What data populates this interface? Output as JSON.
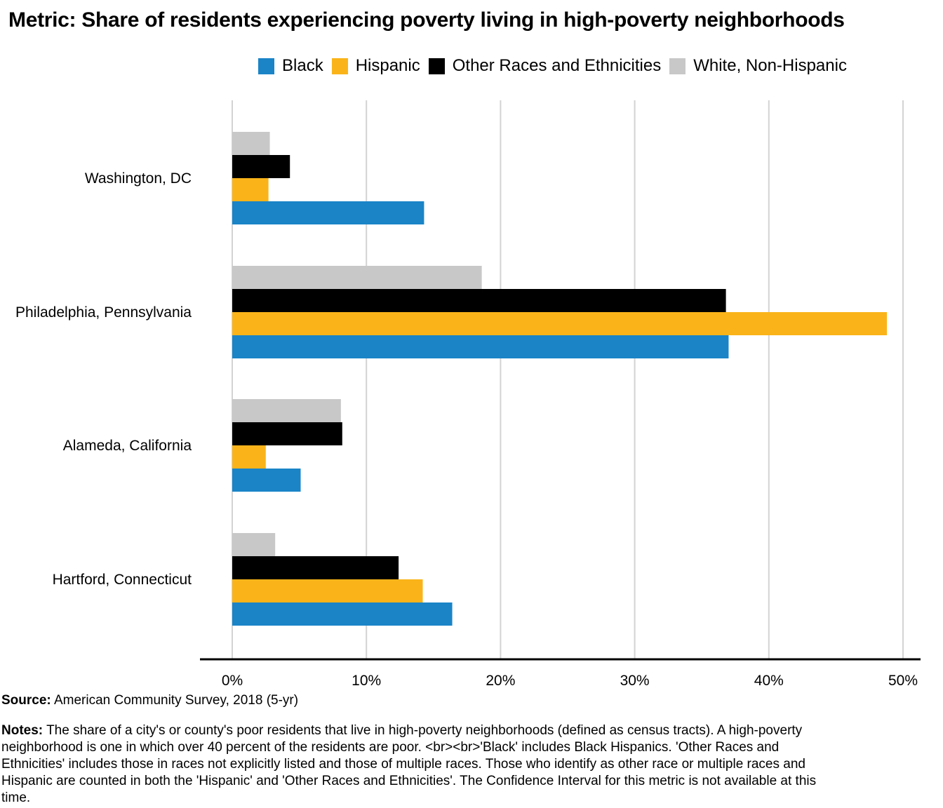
{
  "title": "Metric: Share of residents experiencing poverty living in high-poverty neighborhoods",
  "colors": {
    "Black": "#1a84c7",
    "Hispanic": "#fab419",
    "Other Races and Ethnicities": "#000000",
    "White, Non-Hispanic": "#c8c8c8"
  },
  "chart_data": {
    "type": "bar",
    "orientation": "horizontal",
    "categories": [
      "Washington, DC",
      "Philadelphia, Pennsylvania",
      "Alameda, California",
      "Hartford, Connecticut"
    ],
    "series": [
      {
        "name": "Black",
        "values": [
          14.3,
          37.0,
          5.1,
          16.4
        ]
      },
      {
        "name": "Hispanic",
        "values": [
          2.7,
          48.8,
          2.5,
          14.2
        ]
      },
      {
        "name": "Other Races and Ethnicities",
        "values": [
          4.3,
          36.8,
          8.2,
          12.4
        ]
      },
      {
        "name": "White, Non-Hispanic",
        "values": [
          2.8,
          18.6,
          8.1,
          3.2
        ]
      }
    ],
    "xlim": [
      0,
      50
    ],
    "xticks": [
      "0%",
      "10%",
      "20%",
      "30%",
      "40%",
      "50%"
    ],
    "unit": "%",
    "grid": true,
    "legend": [
      "Black",
      "Hispanic",
      "Other Races and Ethnicities",
      "White, Non-Hispanic"
    ],
    "legend_position": "top-right"
  },
  "source": {
    "label": "Source:",
    "text": "American Community Survey, 2018 (5-yr)"
  },
  "notes": {
    "label": "Notes:",
    "text": "The share of a city's or county's poor residents that live in high-poverty neighborhoods (defined as census tracts). A high-poverty neighborhood is one in which over 40 percent of the residents are poor. <br><br>'Black' includes Black Hispanics. 'Other Races and Ethnicities' includes those in races not explicitly listed and those of multiple races. Those who identify as other race or multiple races and Hispanic are counted in both the 'Hispanic' and 'Other Races and Ethnicities'. The Confidence Interval for this metric is not available at this time."
  }
}
